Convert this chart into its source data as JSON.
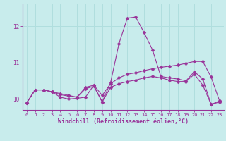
{
  "background_color": "#c8ecec",
  "grid_color": "#b0dede",
  "line_color": "#993399",
  "marker_color": "#993399",
  "xlabel": "Windchill (Refroidissement éolien,°C)",
  "xlim": [
    -0.5,
    23.5
  ],
  "ylim": [
    9.7,
    12.6
  ],
  "yticks": [
    10,
    11,
    12
  ],
  "xticks": [
    0,
    1,
    2,
    3,
    4,
    5,
    6,
    7,
    8,
    9,
    10,
    11,
    12,
    13,
    14,
    15,
    16,
    17,
    18,
    19,
    20,
    21,
    22,
    23
  ],
  "curve1_x": [
    0,
    1,
    2,
    3,
    4,
    5,
    6,
    7,
    8,
    9,
    10,
    11,
    12,
    13,
    14,
    15,
    16,
    17,
    18,
    19,
    20,
    21,
    22,
    23
  ],
  "curve1_y": [
    9.9,
    10.25,
    10.25,
    10.2,
    10.15,
    10.1,
    10.05,
    10.32,
    10.38,
    9.92,
    10.45,
    11.52,
    12.22,
    12.25,
    11.82,
    11.35,
    10.62,
    10.58,
    10.55,
    10.5,
    10.75,
    10.55,
    9.85,
    9.95
  ],
  "curve2_x": [
    0,
    1,
    2,
    3,
    4,
    5,
    6,
    7,
    8,
    9,
    10,
    11,
    12,
    13,
    14,
    15,
    16,
    17,
    18,
    19,
    20,
    21,
    22,
    23
  ],
  "curve2_y": [
    9.9,
    10.25,
    10.25,
    10.2,
    10.05,
    10.0,
    10.02,
    10.05,
    10.38,
    10.1,
    10.42,
    10.58,
    10.68,
    10.72,
    10.78,
    10.83,
    10.87,
    10.9,
    10.93,
    10.98,
    11.03,
    11.03,
    10.6,
    9.95
  ],
  "curve3_x": [
    0,
    1,
    2,
    3,
    4,
    5,
    6,
    7,
    8,
    9,
    10,
    11,
    12,
    13,
    14,
    15,
    16,
    17,
    18,
    19,
    20,
    21,
    22,
    23
  ],
  "curve3_y": [
    9.9,
    10.25,
    10.25,
    10.2,
    10.12,
    10.08,
    10.05,
    10.28,
    10.35,
    9.92,
    10.32,
    10.42,
    10.48,
    10.52,
    10.58,
    10.62,
    10.58,
    10.52,
    10.48,
    10.48,
    10.68,
    10.38,
    9.85,
    9.92
  ]
}
